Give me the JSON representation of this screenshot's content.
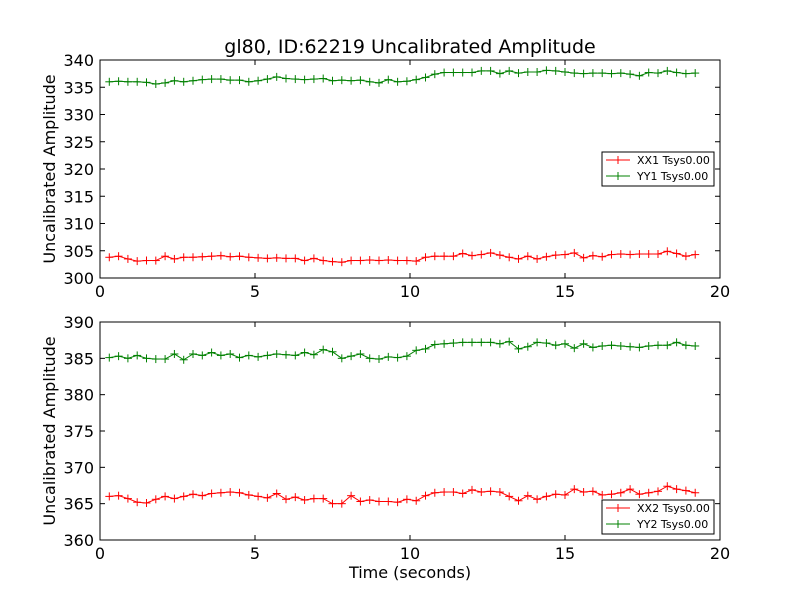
{
  "chart_data": [
    {
      "type": "line",
      "title": "gl80, ID:62219 Uncalibrated Amplitude",
      "xlabel": "",
      "ylabel": "Uncalibrated Amplitude",
      "xlim": [
        0,
        20
      ],
      "ylim": [
        300,
        340
      ],
      "xticks": [
        "0",
        "5",
        "10",
        "15",
        "20"
      ],
      "yticks": [
        "300",
        "305",
        "310",
        "315",
        "320",
        "325",
        "330",
        "335",
        "340"
      ],
      "grid": false,
      "legend": "center-right",
      "x": [
        0.3,
        0.6,
        0.9,
        1.2,
        1.5,
        1.8,
        2.1,
        2.4,
        2.7,
        3.0,
        3.3,
        3.6,
        3.9,
        4.2,
        4.5,
        4.8,
        5.1,
        5.4,
        5.7,
        6.0,
        6.3,
        6.6,
        6.9,
        7.2,
        7.5,
        7.8,
        8.1,
        8.4,
        8.7,
        9.0,
        9.3,
        9.6,
        9.9,
        10.2,
        10.5,
        10.8,
        11.1,
        11.4,
        11.7,
        12.0,
        12.3,
        12.6,
        12.9,
        13.2,
        13.5,
        13.8,
        14.1,
        14.4,
        14.7,
        15.0,
        15.3,
        15.6,
        15.9,
        16.2,
        16.5,
        16.8,
        17.1,
        17.4,
        17.7,
        18.0,
        18.3,
        18.6,
        18.9,
        19.2
      ],
      "series": [
        {
          "name": "XX1 Tsys0.00",
          "color": "#ff0000",
          "values": [
            303.8,
            304.0,
            303.5,
            303.1,
            303.2,
            303.2,
            304.0,
            303.5,
            303.8,
            303.8,
            303.9,
            304.0,
            304.1,
            303.9,
            304.0,
            303.8,
            303.7,
            303.6,
            303.7,
            303.6,
            303.6,
            303.2,
            303.6,
            303.2,
            303.0,
            302.9,
            303.2,
            303.2,
            303.3,
            303.2,
            303.3,
            303.2,
            303.2,
            303.1,
            303.8,
            304.0,
            304.0,
            304.0,
            304.5,
            304.1,
            304.3,
            304.6,
            304.2,
            303.8,
            303.5,
            304.0,
            303.5,
            303.9,
            304.2,
            304.3,
            304.6,
            303.7,
            304.1,
            303.9,
            304.3,
            304.4,
            304.3,
            304.4,
            304.4,
            304.4,
            304.9,
            304.5,
            304.0,
            304.3
          ]
        },
        {
          "name": "YY1 Tsys0.00",
          "color": "#008000",
          "values": [
            336.0,
            336.1,
            336.0,
            336.0,
            335.9,
            335.6,
            335.8,
            336.2,
            336.0,
            336.2,
            336.4,
            336.5,
            336.5,
            336.3,
            336.3,
            336.0,
            336.2,
            336.5,
            336.9,
            336.6,
            336.5,
            336.4,
            336.5,
            336.6,
            336.2,
            336.3,
            336.2,
            336.3,
            336.0,
            335.8,
            336.4,
            336.0,
            336.1,
            336.4,
            336.8,
            337.4,
            337.7,
            337.7,
            337.7,
            337.7,
            338.0,
            338.0,
            337.5,
            338.0,
            337.6,
            337.8,
            337.8,
            338.1,
            338.0,
            337.8,
            337.6,
            337.5,
            337.6,
            337.6,
            337.5,
            337.6,
            337.4,
            337.1,
            337.7,
            337.6,
            338.0,
            337.7,
            337.5,
            337.6
          ]
        }
      ]
    },
    {
      "type": "line",
      "title": "",
      "xlabel": "Time (seconds)",
      "ylabel": "Uncalibrated Amplitude",
      "xlim": [
        0,
        20
      ],
      "ylim": [
        360,
        390
      ],
      "xticks": [
        "0",
        "5",
        "10",
        "15",
        "20"
      ],
      "yticks": [
        "360",
        "365",
        "370",
        "375",
        "380",
        "385",
        "390"
      ],
      "grid": false,
      "legend": "lower-right",
      "x": [
        0.3,
        0.6,
        0.9,
        1.2,
        1.5,
        1.8,
        2.1,
        2.4,
        2.7,
        3.0,
        3.3,
        3.6,
        3.9,
        4.2,
        4.5,
        4.8,
        5.1,
        5.4,
        5.7,
        6.0,
        6.3,
        6.6,
        6.9,
        7.2,
        7.5,
        7.8,
        8.1,
        8.4,
        8.7,
        9.0,
        9.3,
        9.6,
        9.9,
        10.2,
        10.5,
        10.8,
        11.1,
        11.4,
        11.7,
        12.0,
        12.3,
        12.6,
        12.9,
        13.2,
        13.5,
        13.8,
        14.1,
        14.4,
        14.7,
        15.0,
        15.3,
        15.6,
        15.9,
        16.2,
        16.5,
        16.8,
        17.1,
        17.4,
        17.7,
        18.0,
        18.3,
        18.6,
        18.9,
        19.2
      ],
      "series": [
        {
          "name": "XX2 Tsys0.00",
          "color": "#ff0000",
          "values": [
            366.0,
            366.1,
            365.7,
            365.2,
            365.1,
            365.6,
            366.0,
            365.7,
            366.0,
            366.3,
            366.1,
            366.4,
            366.5,
            366.6,
            366.5,
            366.2,
            366.0,
            365.8,
            366.4,
            365.6,
            365.9,
            365.5,
            365.7,
            365.7,
            365.0,
            365.0,
            366.1,
            365.3,
            365.5,
            365.3,
            365.3,
            365.2,
            365.6,
            365.4,
            366.1,
            366.5,
            366.6,
            366.6,
            366.4,
            366.9,
            366.6,
            366.7,
            366.6,
            366.0,
            365.4,
            366.1,
            365.6,
            366.0,
            366.3,
            366.2,
            367.0,
            366.6,
            366.7,
            366.2,
            366.3,
            366.5,
            367.0,
            366.3,
            366.5,
            366.7,
            367.4,
            367.0,
            366.8,
            366.5
          ]
        },
        {
          "name": "YY2 Tsys0.00",
          "color": "#008000",
          "values": [
            385.1,
            385.3,
            385.0,
            385.4,
            385.0,
            384.9,
            384.9,
            385.6,
            384.8,
            385.6,
            385.4,
            385.8,
            385.4,
            385.6,
            385.1,
            385.4,
            385.2,
            385.4,
            385.6,
            385.5,
            385.4,
            385.8,
            385.5,
            386.2,
            385.9,
            385.0,
            385.3,
            385.6,
            385.0,
            384.9,
            385.2,
            385.1,
            385.3,
            386.1,
            386.3,
            386.9,
            387.0,
            387.1,
            387.2,
            387.2,
            387.2,
            387.2,
            387.0,
            387.3,
            386.3,
            386.6,
            387.2,
            387.1,
            386.8,
            387.0,
            386.4,
            387.0,
            386.5,
            386.7,
            386.8,
            386.7,
            386.6,
            386.5,
            386.7,
            386.8,
            386.8,
            387.2,
            386.8,
            386.7
          ]
        }
      ]
    }
  ]
}
